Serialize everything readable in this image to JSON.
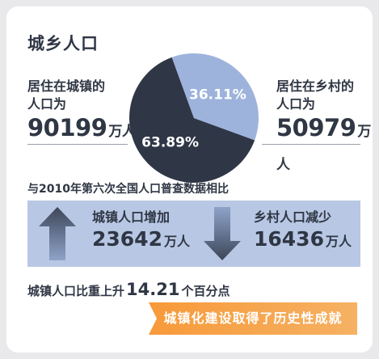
{
  "title": "城乡人口",
  "urban": {
    "label_line1": "居住在城镇的",
    "label_line2": "人口为",
    "value": "90199",
    "unit": "万人"
  },
  "rural": {
    "label_line1": "居住在乡村的",
    "label_line2": "人口为",
    "value": "50979",
    "unit": "万人"
  },
  "chart_data": {
    "type": "pie",
    "slices": [
      {
        "value": 63.89,
        "label": "63.89%",
        "color": "#2f3747"
      },
      {
        "value": 36.11,
        "label": "36.11%",
        "color": "#9db3dc"
      }
    ]
  },
  "comparison_heading": "与2010年第六次全国人口普查数据相比",
  "urban_change": {
    "label": "城镇人口增加",
    "value": "23642",
    "unit": "万人"
  },
  "rural_change": {
    "label": "乡村人口减少",
    "value": "16436",
    "unit": "万人"
  },
  "ratio_rise": {
    "prefix": "城镇人口比重上升",
    "value": "14.21",
    "suffix": "个百分点"
  },
  "banner": "城镇化建设取得了历史性成就"
}
